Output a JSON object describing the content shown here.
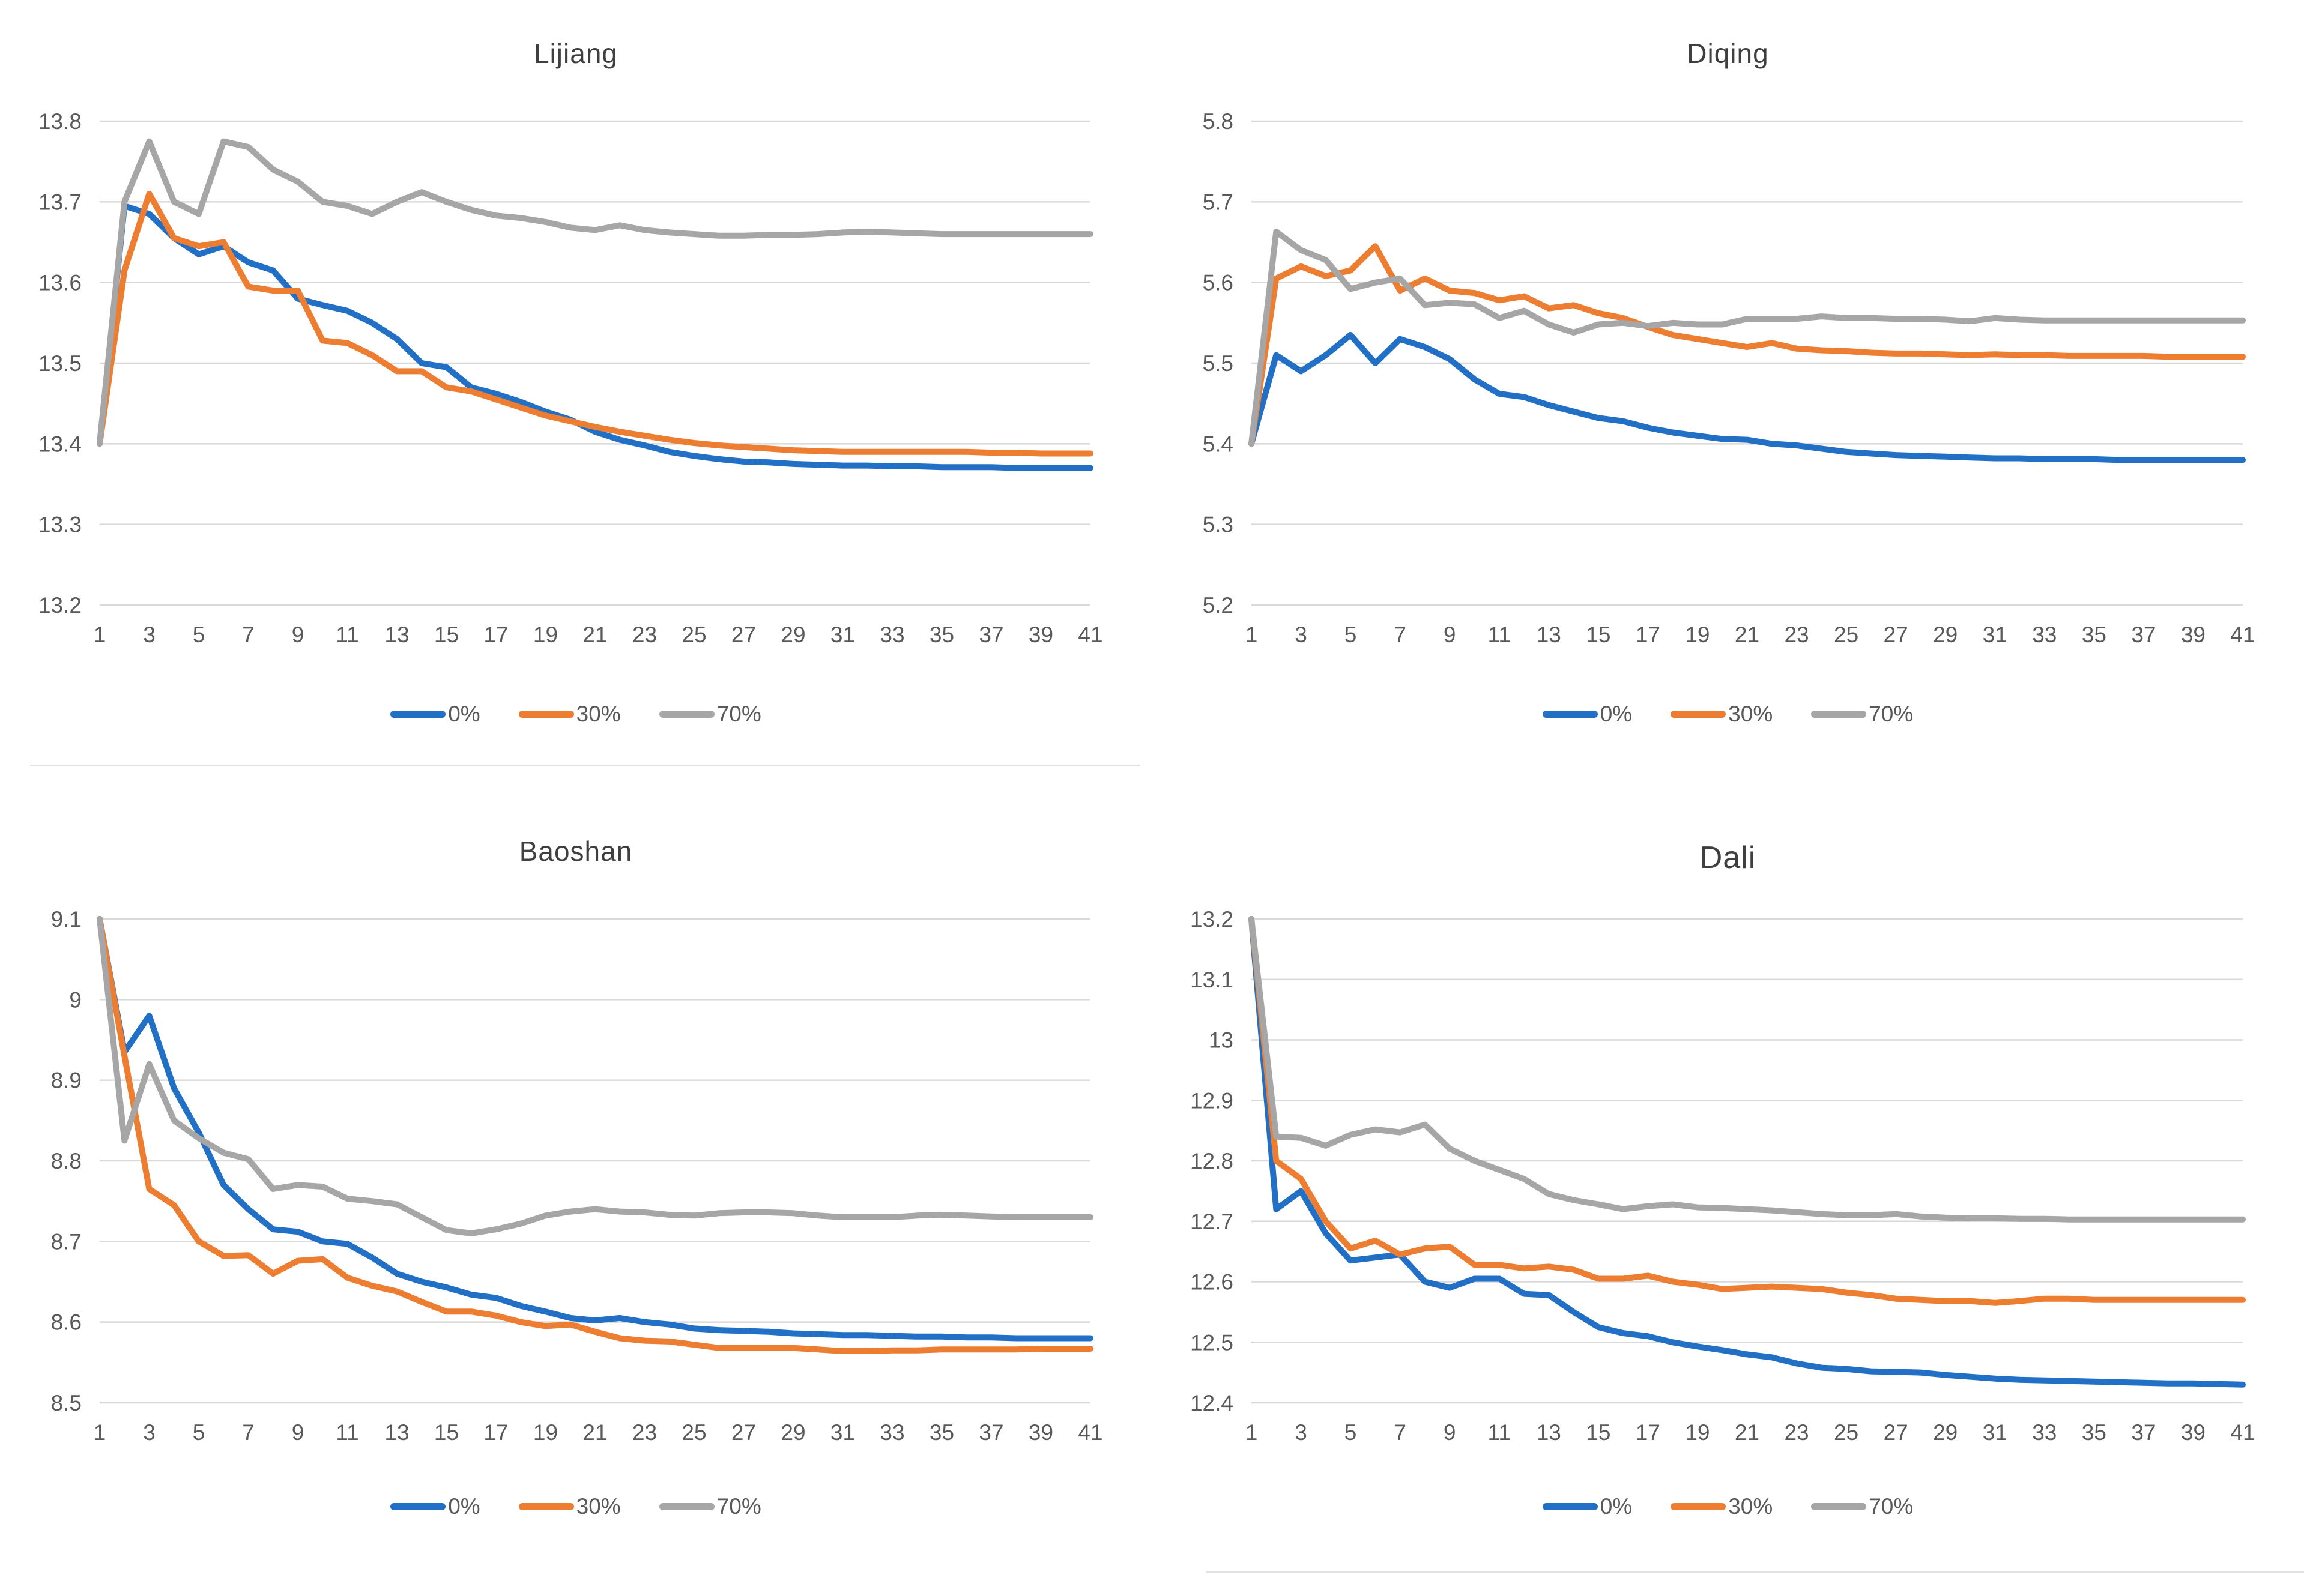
{
  "page": {
    "background": "#ffffff"
  },
  "colors": {
    "grid_line": "#d9d9d9",
    "axis_text": "#595959",
    "title_text": "#3f3f3f",
    "series_blue": "#2170c5",
    "series_orange": "#ed7d31",
    "series_gray": "#a6a6a6"
  },
  "chart_data": [
    {
      "type": "line",
      "title": "Lijiang",
      "xlabel": "",
      "ylabel": "",
      "grid": true,
      "legend_position": "bottom",
      "xlim": [
        1,
        41
      ],
      "x_ticks": [
        1,
        3,
        5,
        7,
        9,
        11,
        13,
        15,
        17,
        19,
        21,
        23,
        25,
        27,
        29,
        31,
        33,
        35,
        37,
        39,
        41
      ],
      "ylim": [
        13.2,
        13.8
      ],
      "y_ticks": [
        "13.8",
        "13.7",
        "13.6",
        "13.5",
        "13.4",
        "13.3",
        "13.2"
      ],
      "series": [
        {
          "name": "0%",
          "color": "#2170c5",
          "values": [
            13.4,
            13.695,
            13.685,
            13.655,
            13.635,
            13.645,
            13.625,
            13.615,
            13.58,
            13.572,
            13.565,
            13.55,
            13.53,
            13.5,
            13.495,
            13.47,
            13.462,
            13.452,
            13.44,
            13.43,
            13.415,
            13.405,
            13.398,
            13.39,
            13.385,
            13.381,
            13.378,
            13.377,
            13.375,
            13.374,
            13.373,
            13.373,
            13.372,
            13.372,
            13.371,
            13.371,
            13.371,
            13.37,
            13.37,
            13.37,
            13.37
          ]
        },
        {
          "name": "30%",
          "color": "#ed7d31",
          "values": [
            13.4,
            13.615,
            13.71,
            13.655,
            13.645,
            13.65,
            13.595,
            13.59,
            13.59,
            13.528,
            13.525,
            13.51,
            13.49,
            13.49,
            13.47,
            13.465,
            13.455,
            13.445,
            13.435,
            13.428,
            13.421,
            13.415,
            13.41,
            13.405,
            13.401,
            13.398,
            13.396,
            13.394,
            13.392,
            13.391,
            13.39,
            13.39,
            13.39,
            13.39,
            13.39,
            13.39,
            13.389,
            13.389,
            13.388,
            13.388,
            13.388
          ]
        },
        {
          "name": "70%",
          "color": "#a6a6a6",
          "values": [
            13.4,
            13.7,
            13.775,
            13.7,
            13.685,
            13.775,
            13.768,
            13.74,
            13.725,
            13.7,
            13.695,
            13.685,
            13.7,
            13.712,
            13.7,
            13.69,
            13.683,
            13.68,
            13.675,
            13.668,
            13.665,
            13.671,
            13.665,
            13.662,
            13.66,
            13.658,
            13.658,
            13.659,
            13.659,
            13.66,
            13.662,
            13.663,
            13.662,
            13.661,
            13.66,
            13.66,
            13.66,
            13.66,
            13.66,
            13.66,
            13.66
          ]
        }
      ]
    },
    {
      "type": "line",
      "title": "Diqing",
      "xlabel": "",
      "ylabel": "",
      "grid": true,
      "legend_position": "bottom",
      "xlim": [
        1,
        41
      ],
      "x_ticks": [
        1,
        3,
        5,
        7,
        9,
        11,
        13,
        15,
        17,
        19,
        21,
        23,
        25,
        27,
        29,
        31,
        33,
        35,
        37,
        39,
        41
      ],
      "ylim": [
        5.2,
        5.8
      ],
      "y_ticks": [
        "5.8",
        "5.7",
        "5.6",
        "5.5",
        "5.4",
        "5.3",
        "5.2"
      ],
      "series": [
        {
          "name": "0%",
          "color": "#2170c5",
          "values": [
            5.4,
            5.51,
            5.49,
            5.51,
            5.535,
            5.5,
            5.53,
            5.52,
            5.505,
            5.48,
            5.462,
            5.458,
            5.448,
            5.44,
            5.432,
            5.428,
            5.42,
            5.414,
            5.41,
            5.406,
            5.405,
            5.4,
            5.398,
            5.394,
            5.39,
            5.388,
            5.386,
            5.385,
            5.384,
            5.383,
            5.382,
            5.382,
            5.381,
            5.381,
            5.381,
            5.38,
            5.38,
            5.38,
            5.38,
            5.38,
            5.38
          ]
        },
        {
          "name": "30%",
          "color": "#ed7d31",
          "values": [
            5.4,
            5.605,
            5.62,
            5.608,
            5.615,
            5.645,
            5.59,
            5.605,
            5.59,
            5.587,
            5.578,
            5.583,
            5.568,
            5.572,
            5.562,
            5.556,
            5.545,
            5.535,
            5.53,
            5.525,
            5.52,
            5.525,
            5.518,
            5.516,
            5.515,
            5.513,
            5.512,
            5.512,
            5.511,
            5.51,
            5.511,
            5.51,
            5.51,
            5.509,
            5.509,
            5.509,
            5.509,
            5.508,
            5.508,
            5.508,
            5.508
          ]
        },
        {
          "name": "70%",
          "color": "#a6a6a6",
          "values": [
            5.4,
            5.663,
            5.64,
            5.628,
            5.592,
            5.6,
            5.605,
            5.572,
            5.575,
            5.573,
            5.556,
            5.565,
            5.548,
            5.538,
            5.548,
            5.55,
            5.546,
            5.55,
            5.548,
            5.548,
            5.555,
            5.555,
            5.555,
            5.558,
            5.556,
            5.556,
            5.555,
            5.555,
            5.554,
            5.552,
            5.556,
            5.554,
            5.553,
            5.553,
            5.553,
            5.553,
            5.553,
            5.553,
            5.553,
            5.553,
            5.553
          ]
        }
      ]
    },
    {
      "type": "line",
      "title": "Baoshan",
      "xlabel": "",
      "ylabel": "",
      "grid": true,
      "legend_position": "bottom",
      "xlim": [
        1,
        41
      ],
      "x_ticks": [
        1,
        3,
        5,
        7,
        9,
        11,
        13,
        15,
        17,
        19,
        21,
        23,
        25,
        27,
        29,
        31,
        33,
        35,
        37,
        39,
        41
      ],
      "ylim": [
        8.5,
        9.1
      ],
      "y_ticks": [
        "9.1",
        "9",
        "8.9",
        "8.8",
        "8.7",
        "8.6",
        "8.5"
      ],
      "series": [
        {
          "name": "0%",
          "color": "#2170c5",
          "values": [
            9.1,
            8.935,
            8.98,
            8.89,
            8.835,
            8.77,
            8.74,
            8.715,
            8.712,
            8.7,
            8.697,
            8.68,
            8.66,
            8.65,
            8.643,
            8.634,
            8.63,
            8.62,
            8.613,
            8.605,
            8.602,
            8.605,
            8.6,
            8.597,
            8.592,
            8.59,
            8.589,
            8.588,
            8.586,
            8.585,
            8.584,
            8.584,
            8.583,
            8.582,
            8.582,
            8.581,
            8.581,
            8.58,
            8.58,
            8.58,
            8.58
          ]
        },
        {
          "name": "30%",
          "color": "#ed7d31",
          "values": [
            9.1,
            8.93,
            8.765,
            8.745,
            8.7,
            8.682,
            8.683,
            8.66,
            8.676,
            8.678,
            8.655,
            8.645,
            8.638,
            8.625,
            8.613,
            8.613,
            8.608,
            8.6,
            8.595,
            8.597,
            8.588,
            8.58,
            8.577,
            8.576,
            8.572,
            8.568,
            8.568,
            8.568,
            8.568,
            8.566,
            8.564,
            8.564,
            8.565,
            8.565,
            8.566,
            8.566,
            8.566,
            8.566,
            8.567,
            8.567,
            8.567
          ]
        },
        {
          "name": "70%",
          "color": "#a6a6a6",
          "values": [
            9.1,
            8.825,
            8.92,
            8.85,
            8.828,
            8.81,
            8.802,
            8.765,
            8.77,
            8.768,
            8.753,
            8.75,
            8.746,
            8.73,
            8.714,
            8.71,
            8.715,
            8.722,
            8.732,
            8.737,
            8.74,
            8.737,
            8.736,
            8.733,
            8.732,
            8.735,
            8.736,
            8.736,
            8.735,
            8.732,
            8.73,
            8.73,
            8.73,
            8.732,
            8.733,
            8.732,
            8.731,
            8.73,
            8.73,
            8.73,
            8.73
          ]
        }
      ]
    },
    {
      "type": "line",
      "title": "Dali",
      "xlabel": "",
      "ylabel": "",
      "grid": true,
      "legend_position": "bottom",
      "xlim": [
        1,
        41
      ],
      "x_ticks": [
        1,
        3,
        5,
        7,
        9,
        11,
        13,
        15,
        17,
        19,
        21,
        23,
        25,
        27,
        29,
        31,
        33,
        35,
        37,
        39,
        41
      ],
      "ylim": [
        12.4,
        13.2
      ],
      "y_ticks": [
        "13.2",
        "13.1",
        "13",
        "12.9",
        "12.8",
        "12.7",
        "12.6",
        "12.5",
        "12.4"
      ],
      "series": [
        {
          "name": "0%",
          "color": "#2170c5",
          "values": [
            13.2,
            12.72,
            12.75,
            12.68,
            12.635,
            12.64,
            12.645,
            12.6,
            12.59,
            12.605,
            12.605,
            12.58,
            12.578,
            12.55,
            12.525,
            12.515,
            12.51,
            12.5,
            12.493,
            12.487,
            12.48,
            12.475,
            12.465,
            12.458,
            12.456,
            12.452,
            12.451,
            12.45,
            12.446,
            12.443,
            12.44,
            12.438,
            12.437,
            12.436,
            12.435,
            12.434,
            12.433,
            12.432,
            12.432,
            12.431,
            12.43
          ]
        },
        {
          "name": "30%",
          "color": "#ed7d31",
          "values": [
            13.2,
            12.8,
            12.77,
            12.7,
            12.655,
            12.668,
            12.645,
            12.655,
            12.658,
            12.628,
            12.628,
            12.622,
            12.625,
            12.62,
            12.605,
            12.605,
            12.61,
            12.6,
            12.595,
            12.588,
            12.59,
            12.592,
            12.59,
            12.588,
            12.582,
            12.578,
            12.572,
            12.57,
            12.568,
            12.568,
            12.565,
            12.568,
            12.572,
            12.572,
            12.57,
            12.57,
            12.57,
            12.57,
            12.57,
            12.57,
            12.57
          ]
        },
        {
          "name": "70%",
          "color": "#a6a6a6",
          "values": [
            13.2,
            12.84,
            12.838,
            12.825,
            12.843,
            12.852,
            12.847,
            12.86,
            12.82,
            12.8,
            12.785,
            12.77,
            12.745,
            12.735,
            12.728,
            12.72,
            12.725,
            12.728,
            12.723,
            12.722,
            12.72,
            12.718,
            12.715,
            12.712,
            12.71,
            12.71,
            12.712,
            12.708,
            12.706,
            12.705,
            12.705,
            12.704,
            12.704,
            12.703,
            12.703,
            12.703,
            12.703,
            12.703,
            12.703,
            12.703,
            12.703
          ]
        }
      ]
    }
  ]
}
